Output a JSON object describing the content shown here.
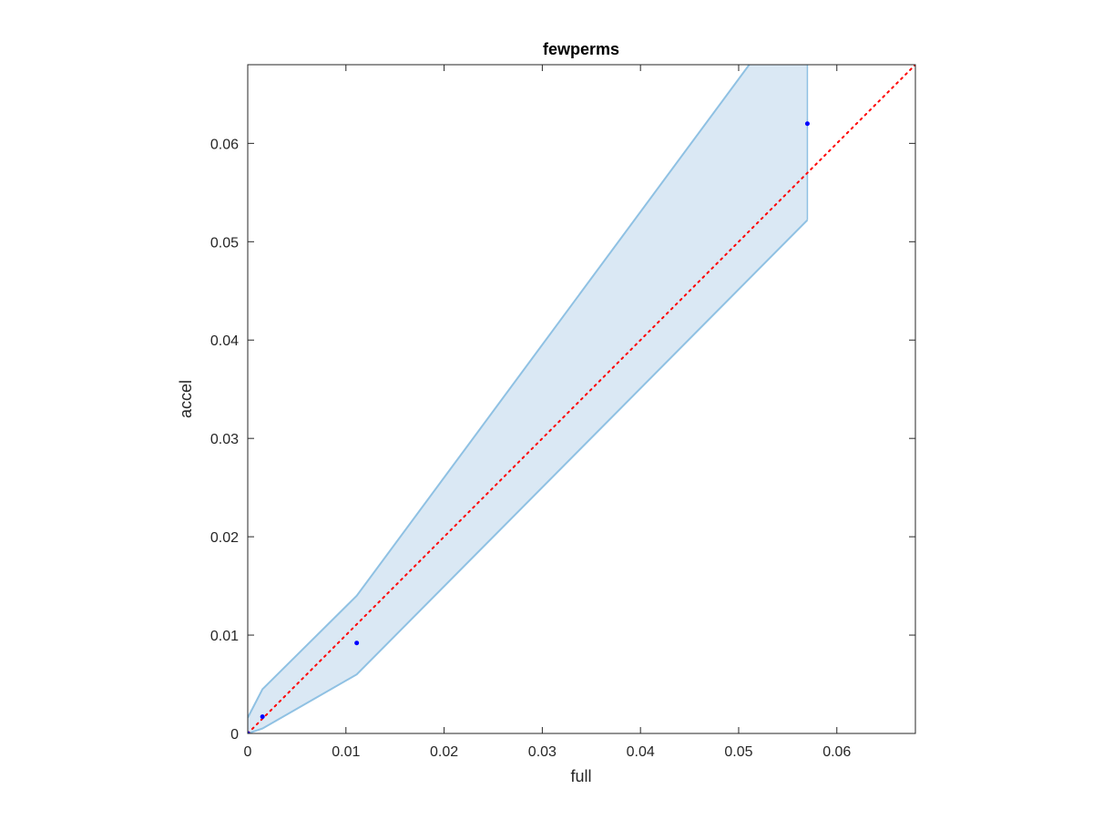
{
  "chart_data": {
    "type": "scatter",
    "title": "fewperms",
    "xlabel": "full",
    "ylabel": "accel",
    "xlim": [
      0,
      0.068
    ],
    "ylim": [
      0,
      0.068
    ],
    "x_ticks": [
      "0",
      "0.01",
      "0.02",
      "0.03",
      "0.04",
      "0.05",
      "0.06"
    ],
    "y_ticks": [
      "0",
      "0.01",
      "0.02",
      "0.03",
      "0.04",
      "0.05",
      "0.06"
    ],
    "grid": false,
    "box": true,
    "series": [
      {
        "role": "points",
        "x": [
          0,
          0.0015,
          0.0111,
          0.057
        ],
        "y": [
          0,
          0.0017,
          0.0092,
          0.062
        ]
      },
      {
        "role": "band",
        "x": [
          0,
          0.0015,
          0.0111,
          0.057
        ],
        "upper": [
          0.0016,
          0.0045,
          0.014,
          0.076
        ],
        "lower": [
          0,
          0.0005,
          0.006,
          0.0522
        ]
      },
      {
        "role": "reference",
        "x": [
          0,
          0.068
        ],
        "y": [
          0,
          0.068
        ]
      }
    ],
    "colors": {
      "points": "#0000ff",
      "band_fill": "#dae8f4",
      "band_edge": "#8fc1e3",
      "reference": "#ff0000",
      "axes": "#262626"
    }
  }
}
